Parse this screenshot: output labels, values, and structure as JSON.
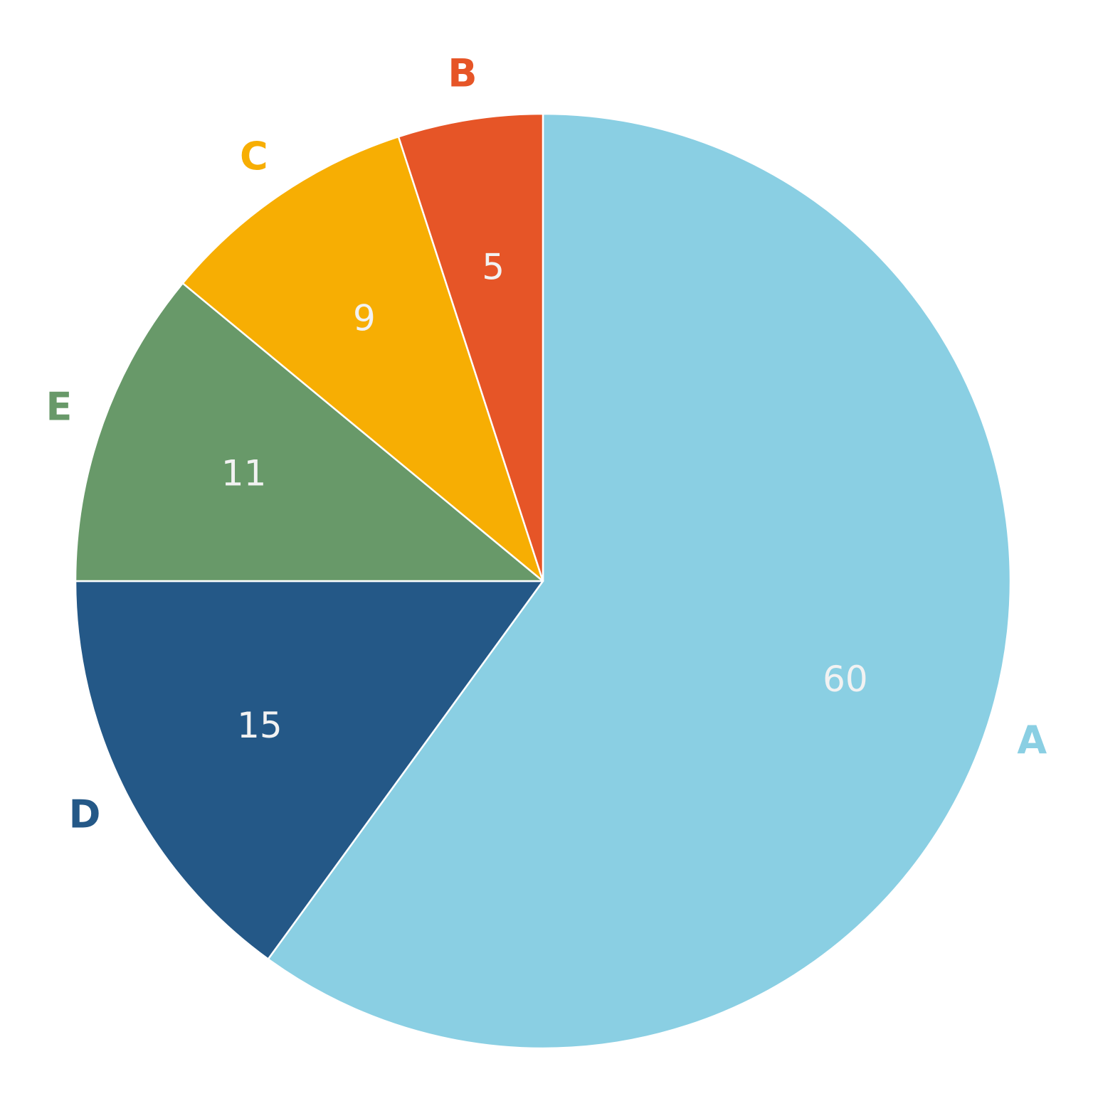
{
  "chart_data": {
    "type": "pie",
    "start_direction": "12 o'clock",
    "direction": "clockwise",
    "slice_border_color": "#ffffff",
    "slices": [
      {
        "label": "A",
        "value": 60,
        "value_text": "60",
        "color": "#8ACFE3"
      },
      {
        "label": "D",
        "value": 15,
        "value_text": "15",
        "color": "#245887"
      },
      {
        "label": "E",
        "value": 11,
        "value_text": "11",
        "color": "#689969"
      },
      {
        "label": "C",
        "value": 9,
        "value_text": "9",
        "color": "#F7AE03"
      },
      {
        "label": "B",
        "value": 5,
        "value_text": "5",
        "color": "#E65527"
      }
    ]
  }
}
